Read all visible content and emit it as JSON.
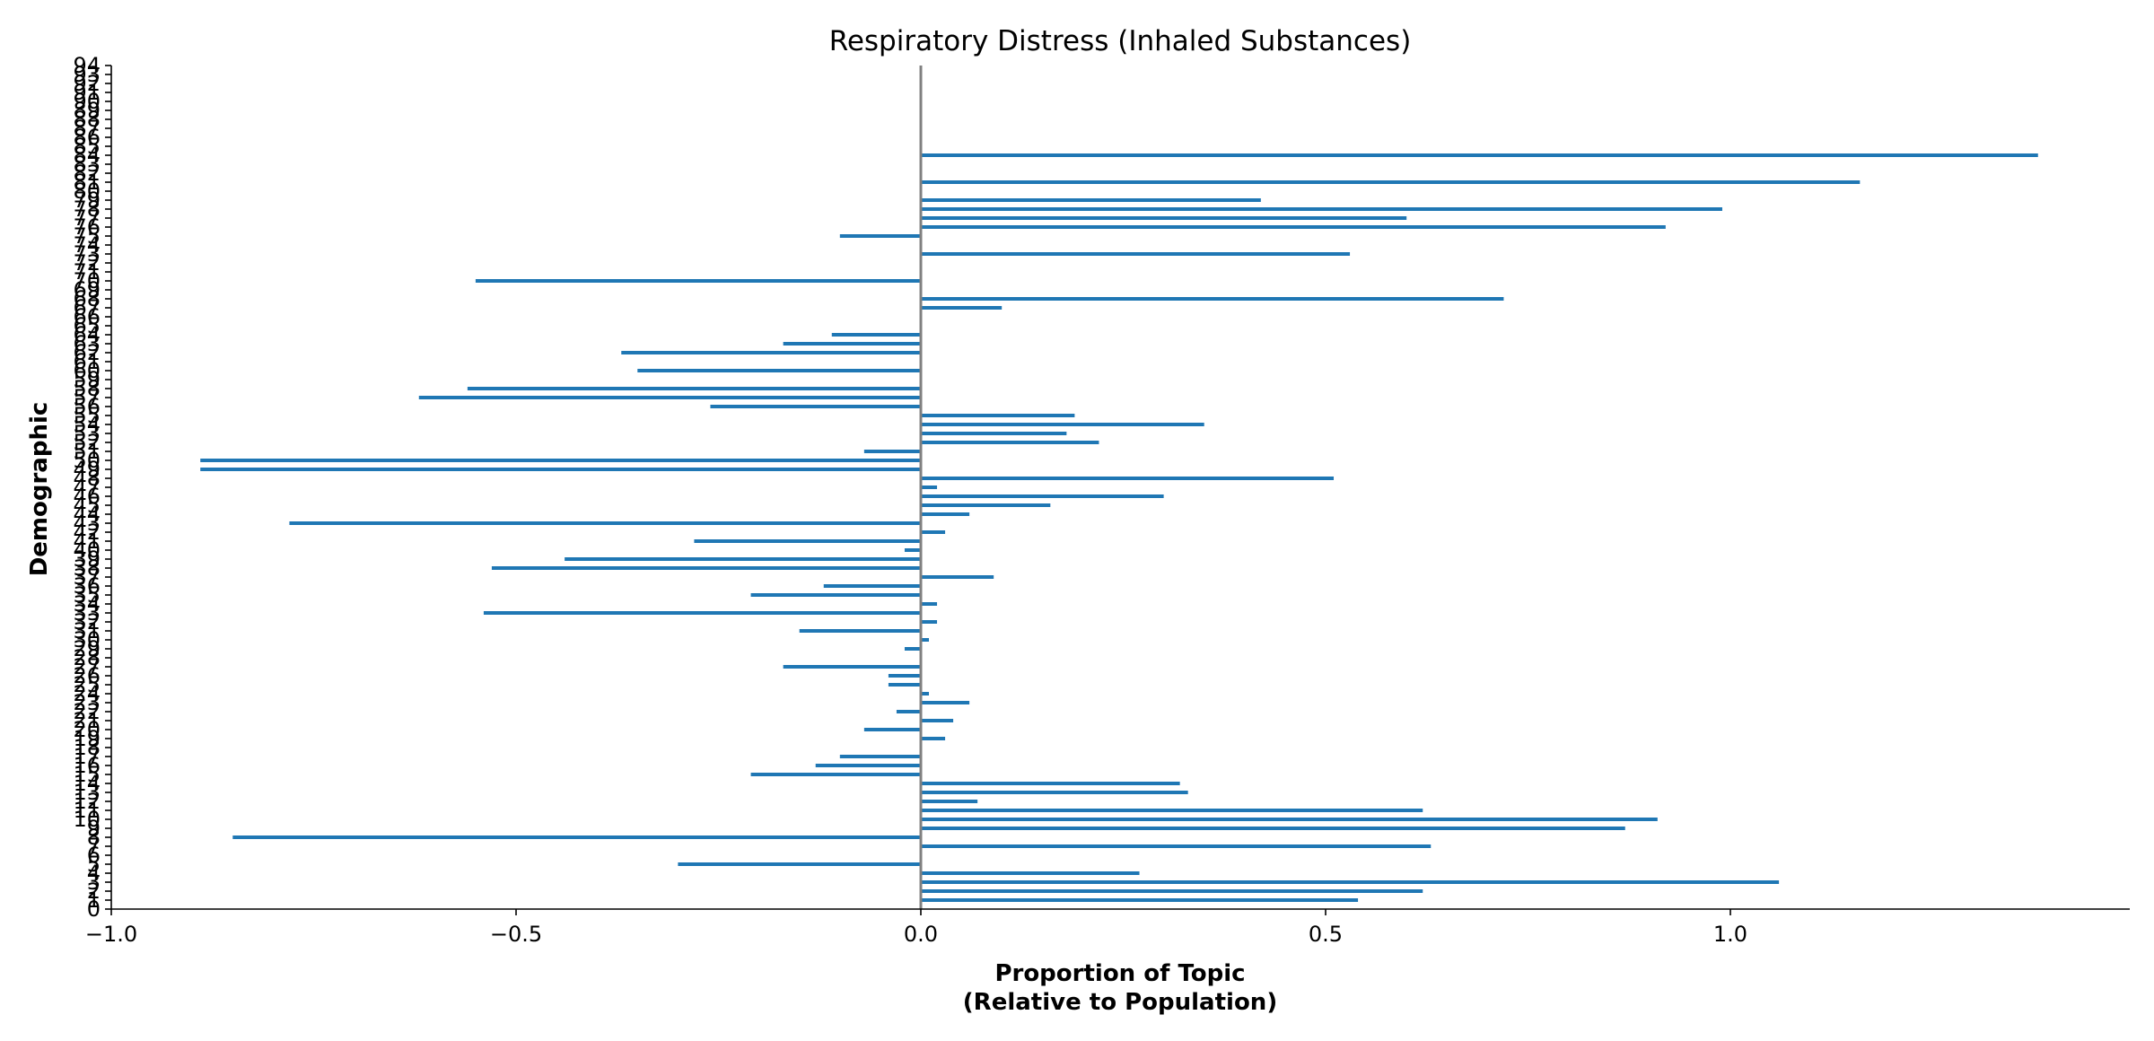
{
  "chart_data": {
    "type": "bar",
    "orientation": "horizontal",
    "title": "Respiratory Distress (Inhaled Substances)",
    "xlabel": "Proportion of Topic\n(Relative to Population)",
    "ylabel": "Demographic",
    "xlim": [
      -1.0,
      1.5
    ],
    "x_ticks": [
      -1.0,
      -0.5,
      0.0,
      0.5,
      1.0
    ],
    "x_tick_labels": [
      "−1.0",
      "−0.5",
      "0.0",
      "0.5",
      "1.0"
    ],
    "ylim": [
      0,
      94
    ],
    "y_ticks": [
      0,
      1,
      2,
      3,
      4,
      5,
      6,
      7,
      8,
      9,
      10,
      11,
      12,
      13,
      14,
      15,
      16,
      17,
      18,
      19,
      20,
      21,
      22,
      23,
      24,
      25,
      26,
      27,
      28,
      29,
      30,
      31,
      32,
      33,
      34,
      35,
      36,
      37,
      38,
      39,
      40,
      41,
      42,
      43,
      44,
      45,
      46,
      47,
      48,
      49,
      50,
      51,
      52,
      53,
      54,
      55,
      56,
      57,
      58,
      59,
      60,
      61,
      62,
      63,
      64,
      65,
      66,
      67,
      68,
      69,
      70,
      71,
      72,
      73,
      74,
      75,
      76,
      77,
      78,
      79,
      80,
      81,
      82,
      83,
      84,
      85,
      86,
      87,
      88,
      89,
      90,
      91,
      92,
      93,
      94
    ],
    "zero_line": true,
    "grid": false,
    "bar_color": "#1f77b4",
    "zero_line_color": "#808080",
    "categories": [
      1,
      2,
      3,
      4,
      5,
      7,
      8,
      9,
      10,
      11,
      12,
      13,
      14,
      15,
      16,
      17,
      18,
      19,
      20,
      21,
      22,
      23,
      24,
      25,
      26,
      27,
      29,
      30,
      31,
      32,
      33,
      34,
      35,
      36,
      37,
      38,
      39,
      40,
      41,
      42,
      43,
      44,
      45,
      46,
      47,
      48,
      49,
      50,
      51,
      52,
      53,
      54,
      55,
      56,
      57,
      58,
      59,
      60,
      61,
      62,
      63,
      64,
      65,
      66,
      67,
      68,
      69,
      70,
      71,
      72,
      73,
      74,
      75,
      76,
      77,
      78,
      79,
      80,
      81,
      82,
      83,
      84,
      85,
      86
    ],
    "values": [
      0.54,
      0.62,
      1.06,
      0.27,
      -0.3,
      0.63,
      -0.85,
      0.87,
      0.91,
      0.62,
      0.07,
      0.33,
      0.32,
      -0.21,
      -0.13,
      -0.1,
      0.0,
      0.03,
      -0.07,
      0.04,
      -0.03,
      0.06,
      0.01,
      -0.04,
      -0.04,
      -0.17,
      -0.02,
      0.01,
      -0.15,
      0.02,
      -0.54,
      0.02,
      -0.21,
      -0.12,
      0.09,
      -0.53,
      -0.44,
      -0.02,
      -0.28,
      0.03,
      -0.78,
      0.06,
      0.16,
      0.3,
      0.02,
      0.51,
      -0.89,
      -0.89,
      -0.07,
      0.22,
      0.18,
      0.35,
      0.19,
      -0.26,
      -0.62,
      -0.56,
      0.0,
      -0.35,
      0.0,
      -0.37,
      -0.17,
      -0.11,
      0.0,
      0.0,
      0.1,
      0.72,
      0.0,
      -0.55,
      0.0,
      0.0,
      0.53,
      0.0,
      -0.1,
      0.92,
      0.6,
      0.99,
      0.42,
      0.0,
      1.16,
      0.0,
      0.0,
      1.38,
      0.0,
      0.0
    ]
  }
}
